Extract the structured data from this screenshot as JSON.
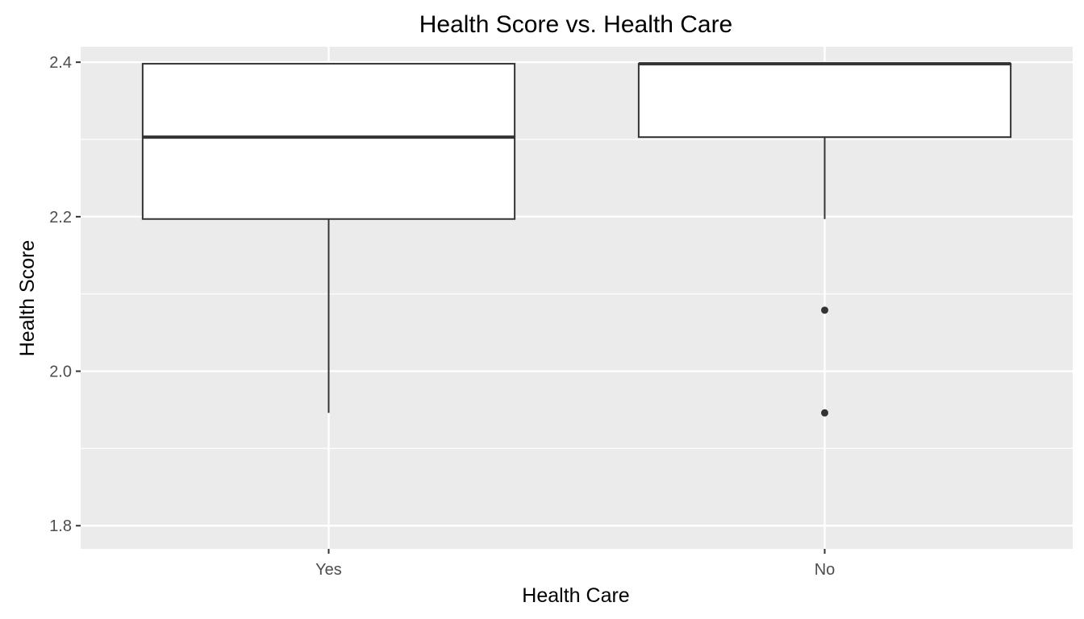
{
  "chart_data": {
    "type": "box",
    "title": "Health Score vs. Health Care",
    "xlabel": "Health Care",
    "ylabel": "Health Score",
    "categories": [
      "Yes",
      "No"
    ],
    "ylim": [
      1.77,
      2.42
    ],
    "yticks": [
      1.8,
      2.0,
      2.2,
      2.4
    ],
    "ytick_labels": [
      "1.8",
      "2.0",
      "2.2",
      "2.4"
    ],
    "boxes": [
      {
        "category": "Yes",
        "whisker_low": 1.946,
        "q1": 2.197,
        "median": 2.303,
        "q3": 2.398,
        "whisker_high": 2.398,
        "outliers": []
      },
      {
        "category": "No",
        "whisker_low": 2.197,
        "q1": 2.303,
        "median": 2.398,
        "q3": 2.398,
        "whisker_high": 2.398,
        "outliers": [
          2.079,
          1.946
        ]
      }
    ],
    "grid": true,
    "colors": {
      "panel": "#ebebeb",
      "grid": "#ffffff",
      "box_fill": "#ffffff",
      "box_line": "#333333",
      "outlier": "#333333"
    }
  }
}
